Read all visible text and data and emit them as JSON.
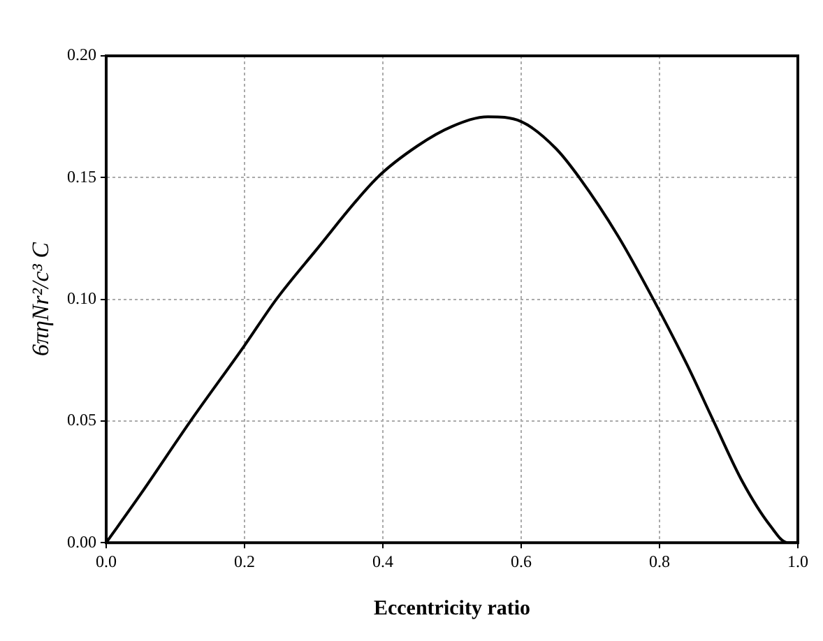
{
  "chart_data": {
    "type": "line",
    "xlabel": "Eccentricity ratio",
    "ylabel": "6πηNr²/c³ C",
    "x": [
      0,
      0.05,
      0.122,
      0.2,
      0.246,
      0.3,
      0.392,
      0.45,
      0.5,
      0.552,
      0.6,
      0.65,
      0.684,
      0.74,
      0.791,
      0.84,
      0.878,
      0.92,
      0.96,
      0.985,
      1.0
    ],
    "series": [
      {
        "color": "#000000",
        "values": [
          0,
          0.02,
          0.05,
          0.081,
          0.1,
          0.119,
          0.15,
          0.163,
          0.171,
          0.175,
          0.173,
          0.162,
          0.15,
          0.126,
          0.1,
          0.073,
          0.05,
          0.025,
          0.007,
          0,
          0
        ]
      }
    ],
    "xlim": [
      0,
      1.0
    ],
    "xticks": [
      {
        "value": 0,
        "label": "0.0"
      },
      {
        "value": 0.2,
        "label": "0.2"
      },
      {
        "value": 0.4,
        "label": "0.4"
      },
      {
        "value": 0.6,
        "label": "0.6"
      },
      {
        "value": 0.8,
        "label": "0.8"
      },
      {
        "value": 1.0,
        "label": "1.0"
      }
    ],
    "ylim": [
      0,
      0.2
    ],
    "yticks": [
      {
        "value": 0,
        "label": "0.00"
      },
      {
        "value": 0.05,
        "label": "0.05"
      },
      {
        "value": 0.1,
        "label": "0.10"
      },
      {
        "value": 0.15,
        "label": "0.15"
      },
      {
        "value": 0.2,
        "label": "0.20"
      }
    ],
    "grid": true,
    "marker": "none",
    "line_style": "solid"
  }
}
